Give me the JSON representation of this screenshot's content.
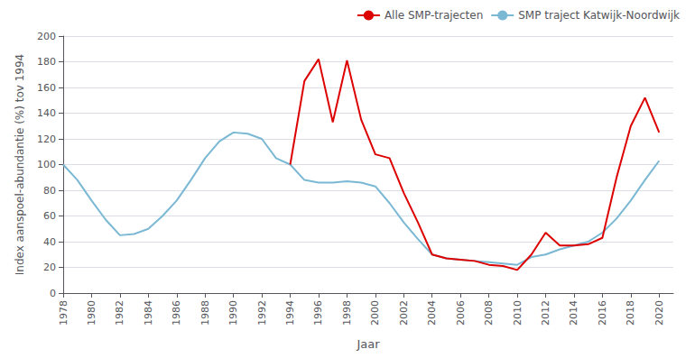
{
  "chart_data": {
    "type": "line",
    "xlabel": "Jaar",
    "ylabel": "Index aanspoel-abundantie (%) tov 1994",
    "xlim": [
      1978,
      2021
    ],
    "ylim": [
      0,
      200
    ],
    "xticks": [
      1978,
      1980,
      1982,
      1984,
      1986,
      1988,
      1990,
      1992,
      1994,
      1996,
      1998,
      2000,
      2002,
      2004,
      2006,
      2008,
      2010,
      2012,
      2014,
      2016,
      2018,
      2020
    ],
    "yticks": [
      0,
      20,
      40,
      60,
      80,
      100,
      120,
      140,
      160,
      180,
      200
    ],
    "grid": true,
    "legend": "upper right",
    "series": [
      {
        "name": "SMP traject Katwijk-Noordwijk",
        "color": "#7ab8d4",
        "x": [
          1978,
          1979,
          1980,
          1981,
          1982,
          1983,
          1984,
          1985,
          1986,
          1987,
          1988,
          1989,
          1990,
          1991,
          1992,
          1993,
          1994,
          1995,
          1996,
          1997,
          1998,
          1999,
          2000,
          2001,
          2002,
          2003,
          2004,
          2005,
          2006,
          2007,
          2008,
          2009,
          2010,
          2011,
          2012,
          2013,
          2014,
          2015,
          2016,
          2017,
          2018,
          2019,
          2020
        ],
        "values": [
          100,
          88,
          72,
          57,
          45,
          46,
          50,
          60,
          72,
          88,
          105,
          118,
          125,
          124,
          120,
          105,
          100,
          88,
          86,
          86,
          87,
          86,
          83,
          70,
          55,
          42,
          30,
          27,
          26,
          25,
          24,
          23,
          22,
          28,
          30,
          34,
          37,
          40,
          47,
          58,
          72,
          88,
          103
        ]
      },
      {
        "name": "Alle SMP-trajecten",
        "color": "#dd0000",
        "x": [
          1994,
          1995,
          1996,
          1997,
          1998,
          1999,
          2000,
          2001,
          2002,
          2003,
          2004,
          2005,
          2006,
          2007,
          2008,
          2009,
          2010,
          2011,
          2012,
          2013,
          2014,
          2015,
          2016,
          2017,
          2018,
          2019,
          2020
        ],
        "values": [
          100,
          165,
          182,
          133,
          181,
          135,
          108,
          105,
          78,
          55,
          30,
          27,
          26,
          25,
          22,
          21,
          18,
          30,
          47,
          37,
          37,
          38,
          43,
          90,
          130,
          152,
          125
        ]
      }
    ]
  }
}
